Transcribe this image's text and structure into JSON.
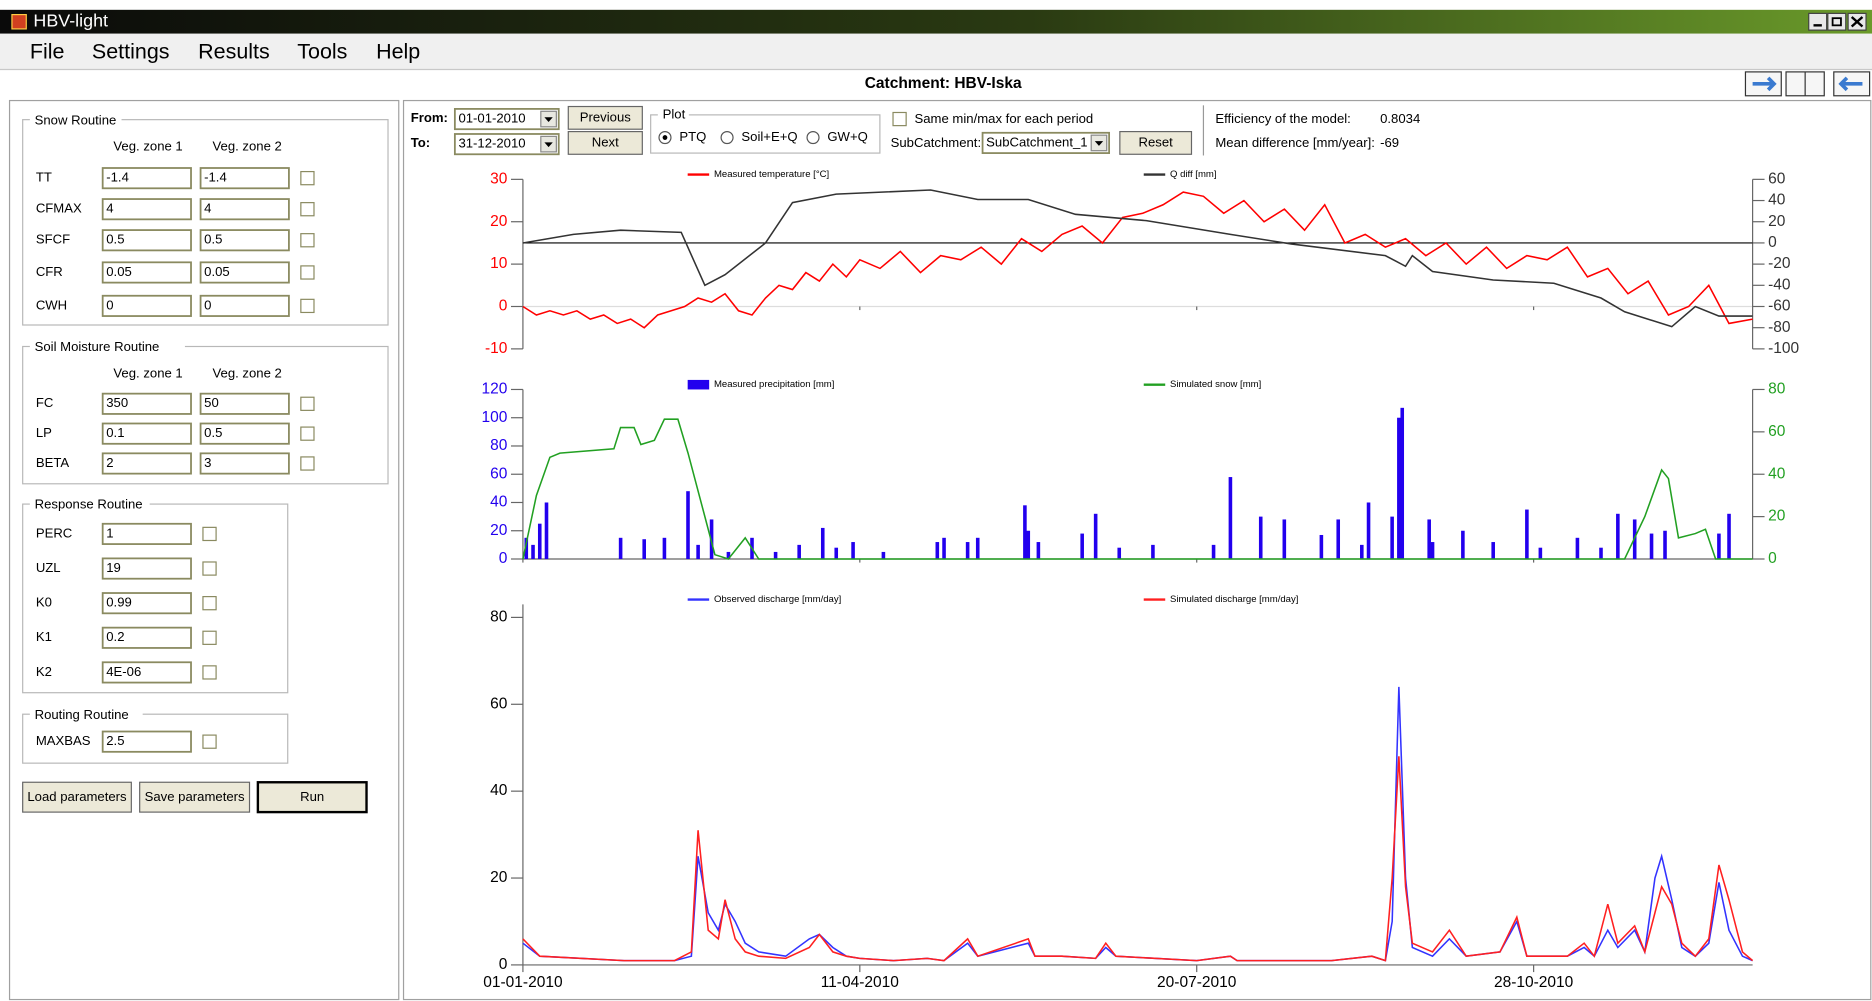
{
  "window": {
    "title": "HBV-light"
  },
  "menu": [
    "File",
    "Settings",
    "Results",
    "Tools",
    "Help"
  ],
  "catchment_label": "Catchment: HBV-Iska",
  "snow_routine": {
    "title": "Snow Routine",
    "columns": [
      "Veg. zone 1",
      "Veg. zone 2"
    ],
    "rows": [
      {
        "name": "TT",
        "values": [
          "-1.4",
          "-1.4"
        ]
      },
      {
        "name": "CFMAX",
        "values": [
          "4",
          "4"
        ]
      },
      {
        "name": "SFCF",
        "values": [
          "0.5",
          "0.5"
        ]
      },
      {
        "name": "CFR",
        "values": [
          "0.05",
          "0.05"
        ]
      },
      {
        "name": "CWH",
        "values": [
          "0",
          "0"
        ]
      }
    ]
  },
  "soil_moisture_routine": {
    "title": "Soil Moisture Routine",
    "columns": [
      "Veg. zone 1",
      "Veg. zone 2"
    ],
    "rows": [
      {
        "name": "FC",
        "values": [
          "350",
          "50"
        ]
      },
      {
        "name": "LP",
        "values": [
          "0.1",
          "0.5"
        ]
      },
      {
        "name": "BETA",
        "values": [
          "2",
          "3"
        ]
      }
    ]
  },
  "response_routine": {
    "title": "Response Routine",
    "rows": [
      {
        "name": "PERC",
        "values": [
          "1"
        ]
      },
      {
        "name": "UZL",
        "values": [
          "19"
        ]
      },
      {
        "name": "K0",
        "values": [
          "0.99"
        ]
      },
      {
        "name": "K1",
        "values": [
          "0.2"
        ]
      },
      {
        "name": "K2",
        "values": [
          "4E-06"
        ]
      }
    ]
  },
  "routing_routine": {
    "title": "Routing Routine",
    "rows": [
      {
        "name": "MAXBAS",
        "values": [
          "2.5"
        ]
      }
    ]
  },
  "buttons": [
    "Load parameters",
    "Save parameters",
    "Run"
  ],
  "controls": {
    "from_label": "From:",
    "from": "01-01-2010",
    "to_label": "To:",
    "to": "31-12-2010",
    "previous": "Previous",
    "next": "Next",
    "plot_group": "Plot",
    "plot_options": [
      "PTQ",
      "Soil+E+Q",
      "GW+Q"
    ],
    "same_minmax": "Same min/max for each period",
    "subcatchment_label": "SubCatchment:",
    "subcatchment": "SubCatchment_1",
    "reset": "Reset"
  },
  "efficiency": {
    "label": "Efficiency of the model:",
    "value": "0.8034"
  },
  "mean_difference": {
    "label": "Mean difference [mm/year]:",
    "value": "-69"
  },
  "chart_data": [
    {
      "type": "line",
      "xlim": [
        0,
        365
      ],
      "xticks": [
        0,
        100,
        200,
        300
      ],
      "ylim": [
        -10,
        30
      ],
      "yticks": [
        -10,
        0,
        10,
        20,
        30
      ],
      "y2lim": [
        -100,
        60
      ],
      "y2ticks": [
        -100,
        -80,
        -60,
        -40,
        -20,
        0,
        20,
        40,
        60
      ],
      "series": [
        {
          "name": "Measured temperature [°C]",
          "color": "#ff0000",
          "x": [
            0,
            4,
            8,
            12,
            16,
            20,
            24,
            28,
            32,
            36,
            40,
            44,
            48,
            52,
            56,
            60,
            64,
            68,
            72,
            76,
            80,
            84,
            88,
            92,
            96,
            100,
            106,
            112,
            118,
            124,
            130,
            136,
            142,
            148,
            154,
            160,
            166,
            172,
            178,
            184,
            190,
            196,
            202,
            208,
            214,
            220,
            226,
            232,
            238,
            244,
            250,
            256,
            262,
            268,
            274,
            280,
            286,
            292,
            298,
            304,
            310,
            316,
            322,
            328,
            334,
            340,
            346,
            352,
            358,
            365
          ],
          "values": [
            0,
            -2,
            -1,
            -2,
            -1,
            -3,
            -2,
            -4,
            -3,
            -5,
            -2,
            -1,
            0,
            2,
            1,
            3,
            -1,
            -2,
            2,
            5,
            4,
            8,
            6,
            10,
            7,
            11,
            9,
            13,
            8,
            12,
            11,
            14,
            10,
            16,
            13,
            17,
            19,
            15,
            21,
            22,
            24,
            27,
            26,
            22,
            25,
            20,
            23,
            18,
            24,
            15,
            17,
            14,
            16,
            12,
            15,
            10,
            14,
            9,
            12,
            11,
            14,
            7,
            9,
            3,
            6,
            -2,
            0,
            5,
            -4,
            -3
          ]
        },
        {
          "name": "Q diff [mm]",
          "color": "#333333",
          "axis": "y2",
          "x": [
            0,
            15,
            29,
            47,
            54,
            60,
            72,
            80,
            93,
            121,
            135,
            150,
            164,
            185,
            210,
            228,
            256,
            262,
            264,
            270,
            288,
            306,
            320,
            327,
            341,
            348,
            355,
            365
          ],
          "values": [
            0,
            8,
            12,
            10,
            -40,
            -30,
            0,
            38,
            46,
            50,
            41,
            41,
            27,
            21,
            8,
            -1,
            -12,
            -22,
            -12,
            -27,
            -35,
            -38,
            -52,
            -65,
            -79,
            -60,
            -69,
            -69
          ]
        }
      ]
    },
    {
      "type": "bar",
      "xlim": [
        0,
        365
      ],
      "xticks": [
        0,
        100,
        200,
        300
      ],
      "ylim": [
        0,
        120
      ],
      "yticks": [
        0,
        20,
        40,
        60,
        80,
        100,
        120
      ],
      "y2lim": [
        0,
        80
      ],
      "y2ticks": [
        0,
        20,
        40,
        60,
        80
      ],
      "series": [
        {
          "name": "Measured precipitation [mm]",
          "color": "#2200ee",
          "x": [
            1,
            3,
            5,
            7,
            29,
            36,
            42,
            49,
            52,
            56,
            61,
            68,
            75,
            82,
            89,
            93,
            98,
            107,
            123,
            125,
            132,
            135,
            149,
            150,
            153,
            166,
            170,
            177,
            187,
            205,
            210,
            219,
            226,
            237,
            242,
            249,
            251,
            258,
            260,
            261,
            269,
            270,
            279,
            288,
            298,
            302,
            313,
            320,
            325,
            330,
            335,
            339,
            355,
            358
          ],
          "values": [
            15,
            10,
            25,
            40,
            15,
            14,
            15,
            48,
            10,
            28,
            5,
            15,
            5,
            10,
            22,
            8,
            12,
            5,
            12,
            15,
            12,
            15,
            38,
            20,
            12,
            18,
            32,
            8,
            10,
            10,
            58,
            30,
            28,
            17,
            28,
            10,
            40,
            30,
            100,
            107,
            28,
            12,
            20,
            12,
            35,
            8,
            15,
            8,
            32,
            28,
            18,
            20,
            18,
            32
          ]
        },
        {
          "name": "Simulated snow [mm]",
          "color": "#22a022",
          "axis": "y2",
          "type": "line",
          "x": [
            0,
            4,
            8,
            11,
            27,
            29,
            33,
            35,
            39,
            42,
            46,
            49,
            54,
            57,
            61,
            66,
            70,
            327,
            333,
            338,
            340,
            343,
            348,
            351,
            354,
            365
          ],
          "values": [
            0,
            30,
            48,
            50,
            52,
            62,
            62,
            54,
            56,
            66,
            66,
            50,
            20,
            2,
            0,
            10,
            0,
            0,
            20,
            42,
            38,
            10,
            12,
            14,
            0,
            0
          ]
        }
      ]
    },
    {
      "type": "line",
      "xlim": [
        0,
        365
      ],
      "xticks": [
        {
          "value": 0,
          "label": "01-01-2010"
        },
        {
          "value": 100,
          "label": "11-04-2010"
        },
        {
          "value": 200,
          "label": "20-07-2010"
        },
        {
          "value": 300,
          "label": "28-10-2010"
        }
      ],
      "ylim": [
        0,
        83
      ],
      "yticks": [
        0,
        20,
        40,
        60,
        80
      ],
      "series": [
        {
          "name": "Observed discharge [mm/day]",
          "color": "#3333ff",
          "x": [
            0,
            5,
            30,
            45,
            50,
            52,
            55,
            58,
            60,
            63,
            66,
            70,
            78,
            85,
            88,
            92,
            96,
            100,
            110,
            120,
            125,
            132,
            135,
            150,
            152,
            160,
            170,
            173,
            176,
            200,
            210,
            212,
            240,
            252,
            256,
            258,
            260,
            262,
            264,
            270,
            275,
            280,
            290,
            295,
            298,
            310,
            315,
            318,
            322,
            325,
            330,
            333,
            336,
            338,
            341,
            344,
            348,
            352,
            355,
            358,
            362,
            365
          ],
          "values": [
            5,
            2,
            1,
            1,
            2,
            25,
            12,
            8,
            14,
            10,
            5,
            3,
            2,
            6,
            7,
            4,
            2,
            1.5,
            1,
            1.5,
            1,
            5,
            2,
            5,
            2,
            2,
            1.5,
            4,
            2,
            1,
            2,
            1,
            1,
            2,
            1,
            10,
            64,
            20,
            4,
            2,
            6,
            2,
            3,
            10,
            2,
            2,
            4,
            2,
            8,
            4,
            8,
            3,
            20,
            25,
            15,
            4,
            2,
            5,
            19,
            8,
            2,
            1
          ]
        },
        {
          "name": "Simulated discharge [mm/day]",
          "color": "#ff2020",
          "x": [
            0,
            5,
            30,
            45,
            50,
            52,
            55,
            58,
            60,
            63,
            66,
            70,
            78,
            85,
            88,
            92,
            96,
            100,
            110,
            120,
            125,
            132,
            135,
            150,
            152,
            160,
            170,
            173,
            176,
            200,
            210,
            212,
            240,
            252,
            256,
            258,
            260,
            262,
            264,
            270,
            275,
            280,
            290,
            295,
            298,
            310,
            315,
            318,
            322,
            325,
            330,
            333,
            336,
            338,
            341,
            344,
            348,
            352,
            355,
            358,
            362,
            365
          ],
          "values": [
            6,
            2,
            1,
            1,
            3,
            31,
            8,
            6,
            15,
            6,
            3,
            2,
            1.5,
            4,
            7,
            3,
            2,
            1.5,
            1,
            1.5,
            1,
            6,
            2,
            6,
            2,
            2,
            1.5,
            5,
            2,
            1,
            2,
            1,
            1,
            2,
            1,
            20,
            48,
            18,
            5,
            3,
            8,
            2,
            3,
            11,
            2,
            2,
            5,
            2,
            14,
            5,
            9,
            3,
            12,
            18,
            14,
            5,
            2,
            6,
            23,
            15,
            3,
            1
          ]
        }
      ]
    }
  ]
}
